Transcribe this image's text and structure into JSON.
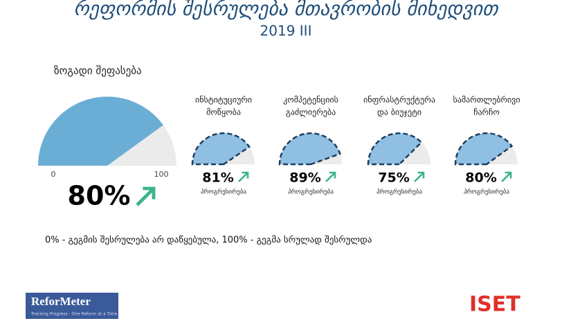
{
  "header": {
    "title": "რეფორმის შესრულება მთავრობის მიხედვით",
    "subtitle": "2019 III"
  },
  "chart_data": [
    {
      "type": "gauge",
      "title": [
        "ზოგადი შეფასება"
      ],
      "values": [
        80
      ],
      "value_labels": [
        "80%"
      ],
      "ylim": [
        0,
        100
      ],
      "yticks": [
        0,
        100
      ],
      "color": "#6aaed6",
      "style": "solid"
    },
    {
      "type": "gauge",
      "title": [
        "ინსტიტუციური",
        "მოწყობა"
      ],
      "values": [
        81
      ],
      "value_labels": [
        "81%"
      ],
      "ylim": [
        0,
        100
      ],
      "status": "პროგრესირება",
      "color": "#8fc0e3",
      "style": "dashed"
    },
    {
      "type": "gauge",
      "title": [
        "კომპეტენციის",
        "გაძლიერება"
      ],
      "values": [
        89
      ],
      "value_labels": [
        "89%"
      ],
      "ylim": [
        0,
        100
      ],
      "status": "პროგრესირება",
      "color": "#8fc0e3",
      "style": "dashed"
    },
    {
      "type": "gauge",
      "title": [
        "ინფრასტრუქტურა",
        "და ბიუჯეტი"
      ],
      "values": [
        75
      ],
      "value_labels": [
        "75%"
      ],
      "ylim": [
        0,
        100
      ],
      "status": "პროგრესირება",
      "color": "#8fc0e3",
      "style": "dashed"
    },
    {
      "type": "gauge",
      "title": [
        "სამართლებრივი",
        "ჩარჩო"
      ],
      "values": [
        80
      ],
      "value_labels": [
        "80%"
      ],
      "ylim": [
        0,
        100
      ],
      "status": "პროგრესირება",
      "color": "#8fc0e3",
      "style": "dashed"
    }
  ],
  "note": "0% - გეგმის შესრულება არ დაწყებულა, 100% - გეგმა სრულად შესრულდა",
  "logos": {
    "reformeter": "ReforMeter",
    "tagline": "Tracking Progress - One Reform at a Time",
    "iset": "ISET"
  }
}
